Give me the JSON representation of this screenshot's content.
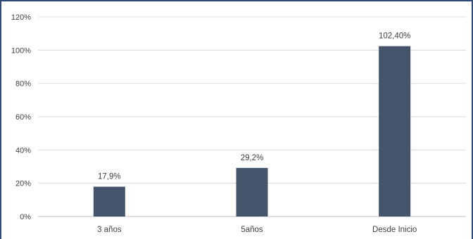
{
  "chart_data": {
    "type": "bar",
    "title": "",
    "xlabel": "",
    "ylabel": "",
    "categories": [
      "3 años",
      "5años",
      "Desde Inicio"
    ],
    "values": [
      17.9,
      29.2,
      102.4
    ],
    "data_labels": [
      "17,9%",
      "29,2%",
      "102,40%"
    ],
    "ylim": [
      0,
      120
    ],
    "yticks": [
      0,
      20,
      40,
      60,
      80,
      100,
      120
    ],
    "ytick_labels": [
      "0%",
      "20%",
      "40%",
      "60%",
      "80%",
      "100%",
      "120%"
    ],
    "grid": true,
    "legend": "none",
    "colors": {
      "bar": "#44546a",
      "frame": "#2e4a78",
      "grid": "#d9d9d9"
    }
  }
}
